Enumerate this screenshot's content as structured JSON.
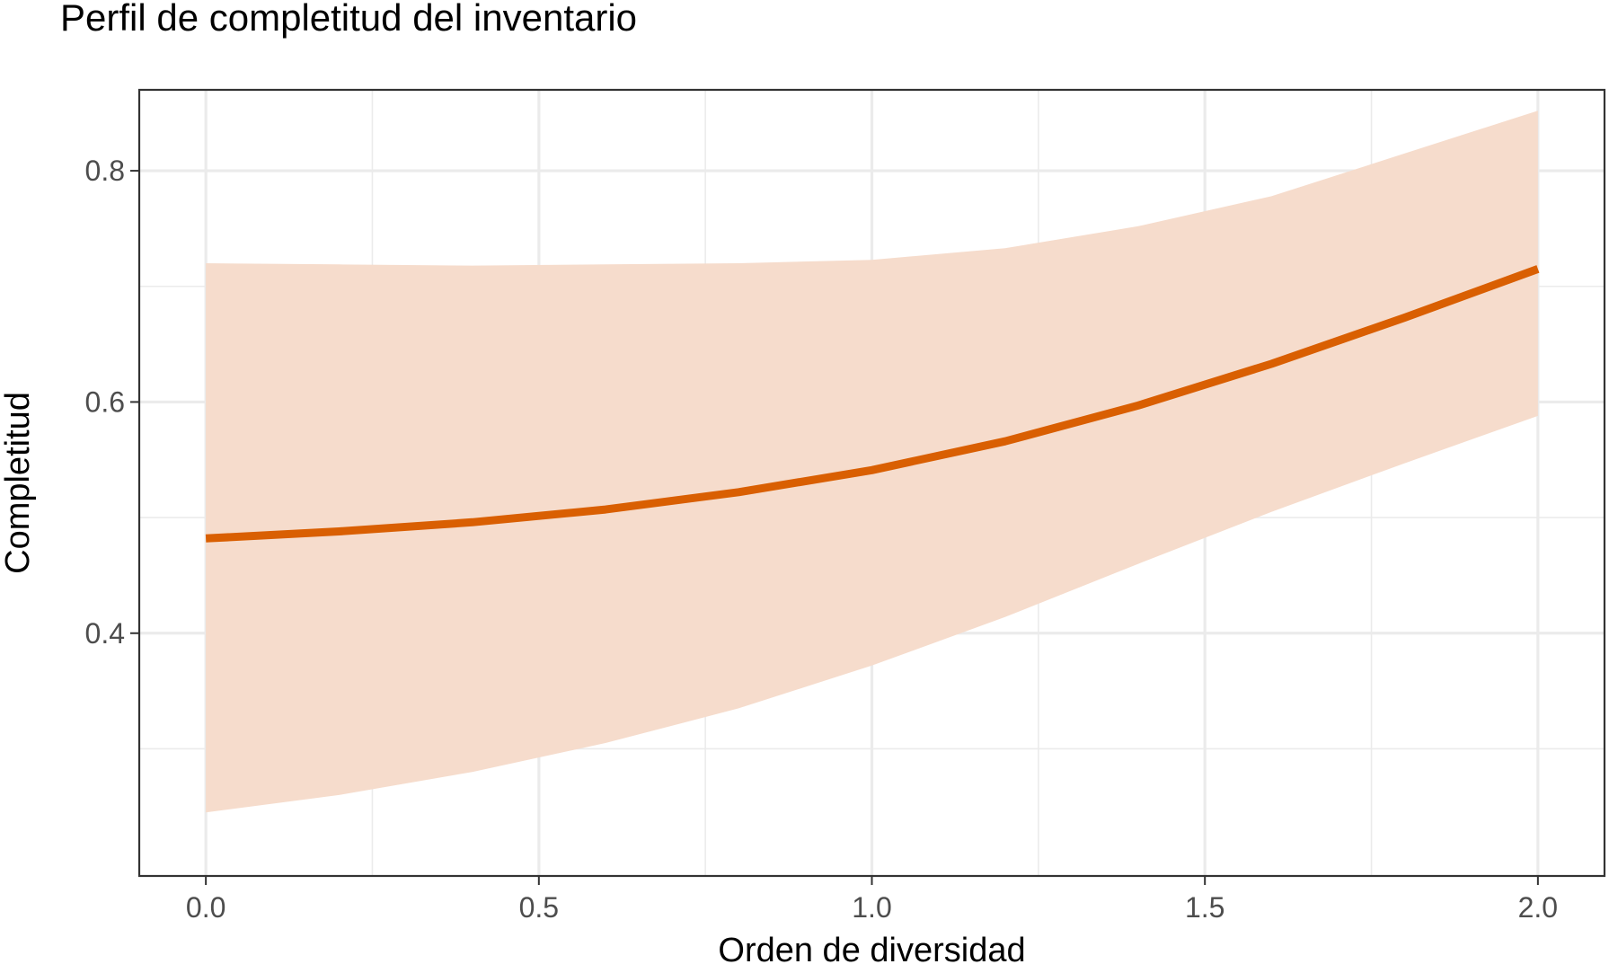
{
  "chart_data": {
    "type": "line",
    "title": "Perfil de completitud del inventario",
    "xlabel": "Orden de diversidad",
    "ylabel": "Completitud",
    "xlim": [
      -0.1,
      2.1
    ],
    "ylim": [
      0.19,
      0.87
    ],
    "x_ticks": [
      0.0,
      0.5,
      1.0,
      1.5,
      2.0
    ],
    "x_tick_labels": [
      "0.0",
      "0.5",
      "1.0",
      "1.5",
      "2.0"
    ],
    "y_ticks": [
      0.4,
      0.6,
      0.8
    ],
    "y_tick_labels": [
      "0.4",
      "0.6",
      "0.8"
    ],
    "x_minor_ticks": [
      0.25,
      0.75,
      1.25,
      1.75
    ],
    "y_minor_ticks": [
      0.3,
      0.5,
      0.7
    ],
    "grid": true,
    "legend": "none",
    "series": [
      {
        "x": [
          0.0,
          0.2,
          0.4,
          0.6,
          0.8,
          1.0,
          1.2,
          1.4,
          1.6,
          1.8,
          2.0
        ],
        "values": [
          0.482,
          0.488,
          0.496,
          0.507,
          0.522,
          0.541,
          0.566,
          0.597,
          0.633,
          0.673,
          0.715
        ],
        "lower": [
          0.245,
          0.26,
          0.28,
          0.305,
          0.335,
          0.372,
          0.414,
          0.46,
          0.505,
          0.547,
          0.588
        ],
        "upper": [
          0.72,
          0.719,
          0.718,
          0.719,
          0.72,
          0.723,
          0.733,
          0.752,
          0.778,
          0.815,
          0.852
        ],
        "color": "#d95f02",
        "ribbon_color": "#f6dccc"
      }
    ]
  }
}
